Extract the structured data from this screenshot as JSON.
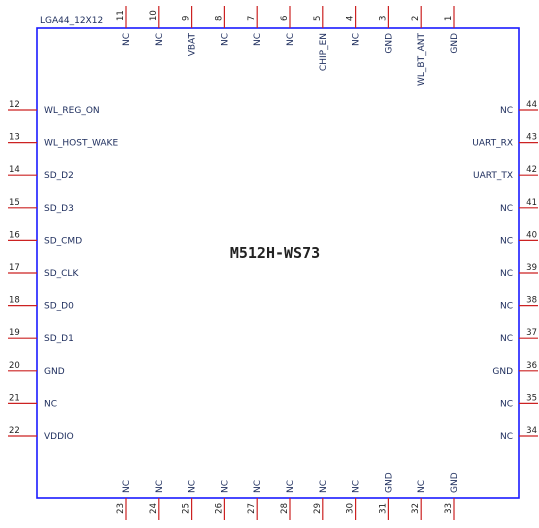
{
  "component": {
    "package": "LGA44_12X12",
    "part_name": "M512H-WS73",
    "body_color": "#1a1aff",
    "pin_color": "#cc2222"
  },
  "pins": {
    "top": [
      {
        "num": "11",
        "label": "NC"
      },
      {
        "num": "10",
        "label": "NC"
      },
      {
        "num": "9",
        "label": "VBAT"
      },
      {
        "num": "8",
        "label": "NC"
      },
      {
        "num": "7",
        "label": "NC"
      },
      {
        "num": "6",
        "label": "NC"
      },
      {
        "num": "5",
        "label": "CHIP_EN"
      },
      {
        "num": "4",
        "label": "NC"
      },
      {
        "num": "3",
        "label": "GND"
      },
      {
        "num": "2",
        "label": "WL_BT_ANT"
      },
      {
        "num": "1",
        "label": "GND"
      }
    ],
    "left": [
      {
        "num": "12",
        "label": "WL_REG_ON"
      },
      {
        "num": "13",
        "label": "WL_HOST_WAKE"
      },
      {
        "num": "14",
        "label": "SD_D2"
      },
      {
        "num": "15",
        "label": "SD_D3"
      },
      {
        "num": "16",
        "label": "SD_CMD"
      },
      {
        "num": "17",
        "label": "SD_CLK"
      },
      {
        "num": "18",
        "label": "SD_D0"
      },
      {
        "num": "19",
        "label": "SD_D1"
      },
      {
        "num": "20",
        "label": "GND"
      },
      {
        "num": "21",
        "label": "NC"
      },
      {
        "num": "22",
        "label": "VDDIO"
      }
    ],
    "right": [
      {
        "num": "44",
        "label": "NC"
      },
      {
        "num": "43",
        "label": "UART_RX"
      },
      {
        "num": "42",
        "label": "UART_TX"
      },
      {
        "num": "41",
        "label": "NC"
      },
      {
        "num": "40",
        "label": "NC"
      },
      {
        "num": "39",
        "label": "NC"
      },
      {
        "num": "38",
        "label": "NC"
      },
      {
        "num": "37",
        "label": "NC"
      },
      {
        "num": "36",
        "label": "GND"
      },
      {
        "num": "35",
        "label": "NC"
      },
      {
        "num": "34",
        "label": "NC"
      }
    ],
    "bottom": [
      {
        "num": "23",
        "label": "NC"
      },
      {
        "num": "24",
        "label": "NC"
      },
      {
        "num": "25",
        "label": "NC"
      },
      {
        "num": "26",
        "label": "NC"
      },
      {
        "num": "27",
        "label": "NC"
      },
      {
        "num": "28",
        "label": "NC"
      },
      {
        "num": "29",
        "label": "NC"
      },
      {
        "num": "30",
        "label": "NC"
      },
      {
        "num": "31",
        "label": "GND"
      },
      {
        "num": "32",
        "label": "NC"
      },
      {
        "num": "33",
        "label": "GND"
      }
    ]
  }
}
